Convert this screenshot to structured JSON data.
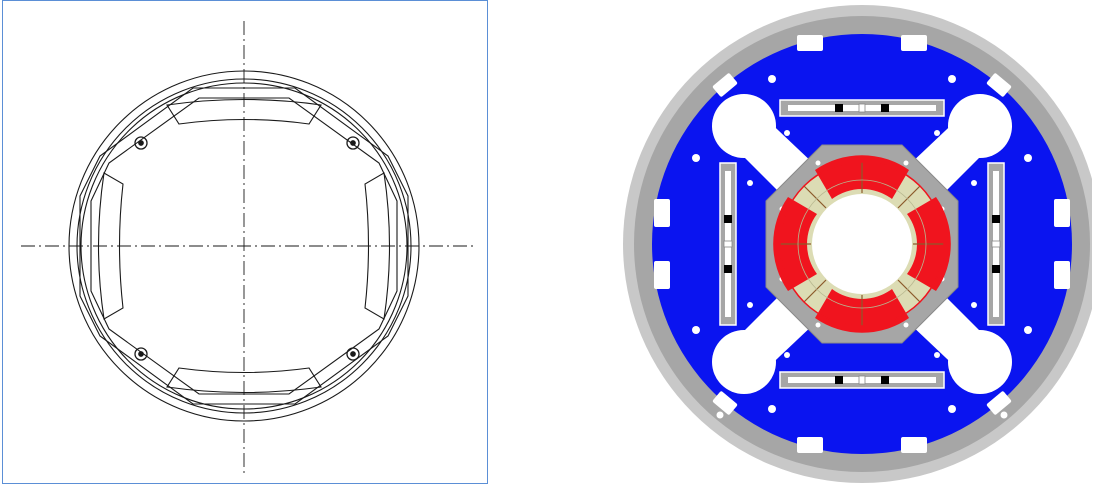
{
  "figure": {
    "left": {
      "kind": "technical-line-drawing",
      "view": "cross-section",
      "frame_color": "#5b8fd6",
      "line_color": "#1a1a1a",
      "centerline_style": "dash-dot",
      "fastener_count": 4
    },
    "right": {
      "kind": "colored-cross-section-model",
      "view": "cross-section",
      "colors": {
        "outer_ring": "#c8c8c8",
        "steel_gray": "#a6a6a6",
        "iron_yoke": "#0a14f0",
        "voids": "#ffffff",
        "coil_red": "#f0141e",
        "coil_insulation": "#dcdcb4",
        "bolts": "#000000"
      },
      "rim_slot_count": 12,
      "corner_hole_count": 4,
      "gray_bar_count": 4,
      "coil_sector_count": 8
    }
  }
}
